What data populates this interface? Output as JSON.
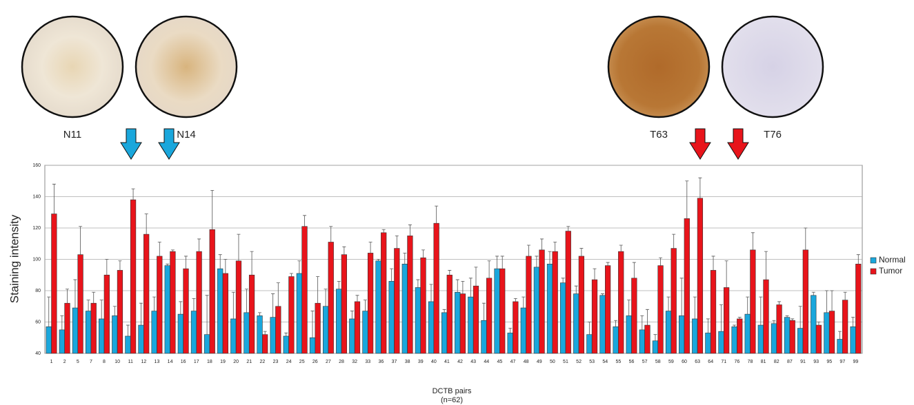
{
  "micrographs": [
    {
      "label": "N11"
    },
    {
      "label": "N14"
    },
    {
      "label": "T63"
    },
    {
      "label": "T76"
    }
  ],
  "chart_data": {
    "type": "bar",
    "y_label": "Staining intensity",
    "x_label": "DCTB pairs",
    "x_sublabel": "(n=62)",
    "categories": [
      "1",
      "2",
      "5",
      "7",
      "8",
      "10",
      "11",
      "12",
      "13",
      "14",
      "16",
      "17",
      "18",
      "19",
      "20",
      "21",
      "22",
      "23",
      "24",
      "25",
      "26",
      "27",
      "28",
      "32",
      "33",
      "36",
      "37",
      "38",
      "39",
      "40",
      "41",
      "42",
      "43",
      "44",
      "45",
      "47",
      "48",
      "49",
      "50",
      "51",
      "52",
      "53",
      "54",
      "55",
      "56",
      "57",
      "58",
      "59",
      "60",
      "63",
      "64",
      "71",
      "76",
      "78",
      "81",
      "82",
      "87",
      "91",
      "93",
      "95",
      "97",
      "99"
    ],
    "series": [
      {
        "name": "Normal",
        "color": "#1aa7dc",
        "values": [
          57,
          55,
          69,
          67,
          62,
          64,
          51,
          58,
          67,
          96,
          65,
          67,
          52,
          94,
          62,
          66,
          64,
          63,
          51,
          91,
          50,
          70,
          81,
          62,
          67,
          99,
          86,
          97,
          82,
          73,
          66,
          79,
          76,
          61,
          94,
          53,
          69,
          95,
          97,
          85,
          78,
          52,
          77,
          57,
          64,
          55,
          48,
          67,
          64,
          62,
          53,
          54,
          57,
          65,
          58,
          59,
          63,
          56,
          77,
          66,
          49,
          57
        ],
        "errors": [
          19,
          9,
          18,
          7,
          12,
          6,
          7,
          14,
          9,
          1,
          8,
          8,
          25,
          9,
          17,
          15,
          2,
          15,
          2,
          8,
          17,
          11,
          5,
          5,
          7,
          1,
          8,
          7,
          5,
          11,
          2,
          8,
          12,
          11,
          8,
          3,
          7,
          7,
          8,
          3,
          5,
          8,
          1,
          4,
          10,
          9,
          4,
          9,
          24,
          14,
          9,
          17,
          1,
          11,
          18,
          2,
          1,
          14,
          2,
          14,
          5,
          6
        ]
      },
      {
        "name": "Tumor",
        "color": "#e8141b",
        "values": [
          129,
          72,
          103,
          72,
          90,
          93,
          138,
          116,
          102,
          105,
          94,
          105,
          119,
          91,
          99,
          90,
          52,
          70,
          89,
          121,
          72,
          111,
          103,
          73,
          104,
          117,
          107,
          115,
          101,
          123,
          90,
          78,
          83,
          88,
          94,
          73,
          102,
          106,
          105,
          118,
          102,
          87,
          96,
          105,
          88,
          58,
          96,
          107,
          126,
          139,
          93,
          82,
          62,
          106,
          87,
          71,
          61,
          106,
          58,
          67,
          74,
          97
        ],
        "errors": [
          19,
          9,
          18,
          7,
          10,
          6,
          7,
          13,
          9,
          1,
          8,
          8,
          25,
          9,
          17,
          15,
          2,
          15,
          2,
          7,
          17,
          10,
          5,
          4,
          7,
          2,
          8,
          7,
          5,
          11,
          3,
          8,
          12,
          11,
          8,
          2,
          7,
          7,
          6,
          3,
          5,
          7,
          2,
          4,
          10,
          10,
          5,
          9,
          24,
          13,
          9,
          17,
          1,
          11,
          18,
          2,
          1,
          14,
          2,
          13,
          5,
          6
        ]
      }
    ],
    "ylim": [
      40,
      160
    ],
    "yticks": [
      40,
      60,
      80,
      100,
      120,
      140,
      160
    ],
    "grid": true
  }
}
